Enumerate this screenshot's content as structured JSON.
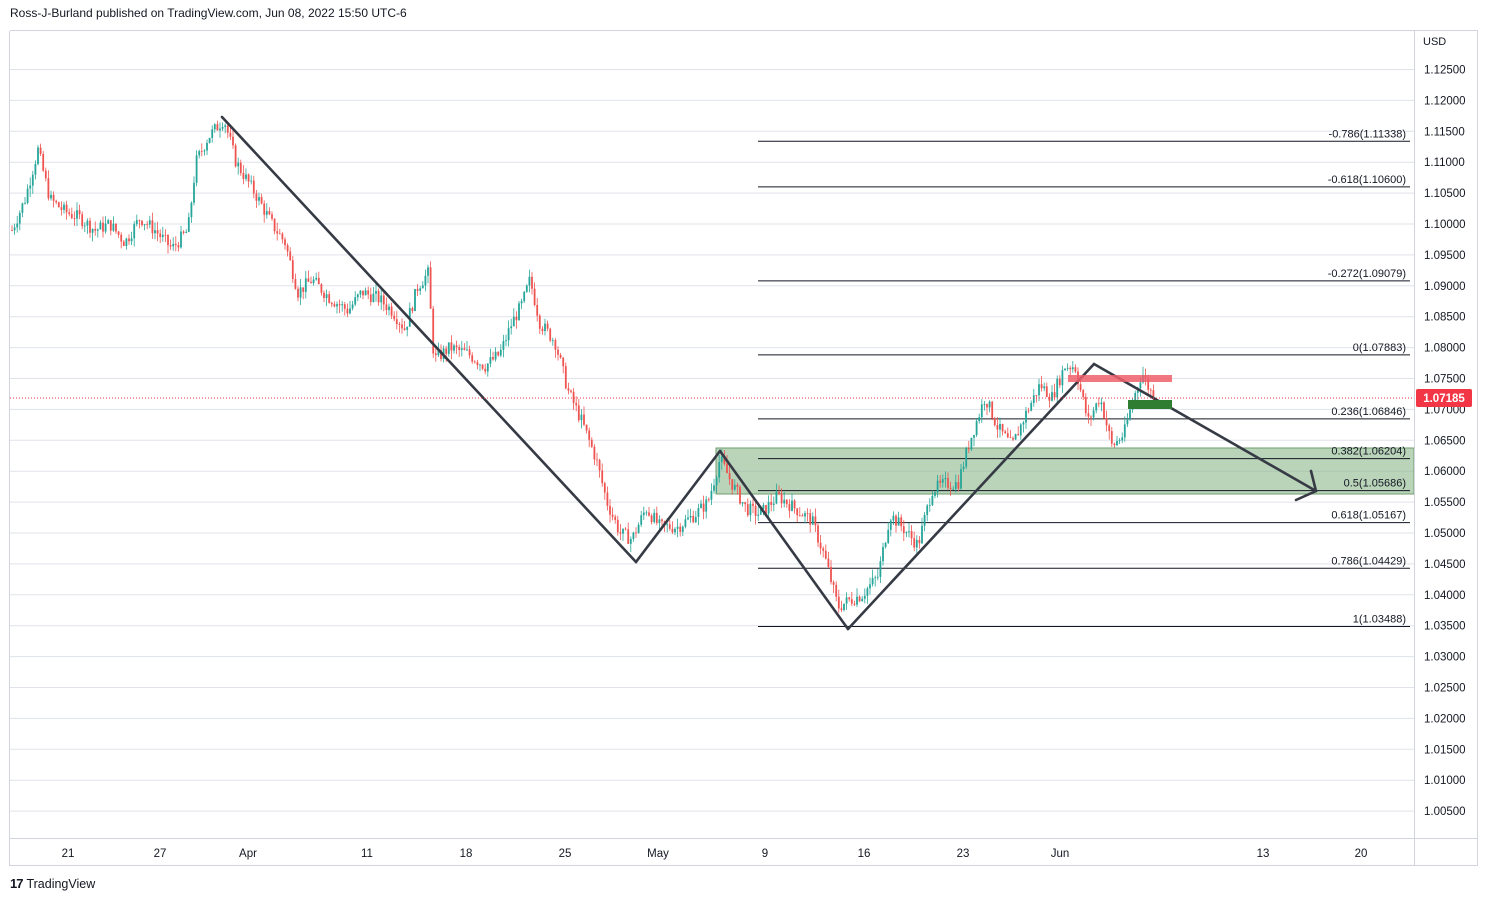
{
  "header": {
    "publisher_line": "Ross-J-Burland published on TradingView.com, Jun 08, 2022 15:50 UTC-6"
  },
  "footer": {
    "logo_text": "TradingView",
    "logo_mark": "17"
  },
  "chart_data": {
    "type": "candlestick",
    "currency": "USD",
    "price_range": [
      1.0,
      1.13
    ],
    "y_ticks": [
      "1.12500",
      "1.12000",
      "1.11500",
      "1.11000",
      "1.10500",
      "1.10000",
      "1.09500",
      "1.09000",
      "1.08500",
      "1.08000",
      "1.07500",
      "1.07000",
      "1.06500",
      "1.06000",
      "1.05500",
      "1.05000",
      "1.04500",
      "1.04000",
      "1.03500",
      "1.03000",
      "1.02500",
      "1.02000",
      "1.01500",
      "1.01000",
      "1.00500"
    ],
    "x_ticks": [
      "21",
      "27",
      "Apr",
      "11",
      "18",
      "25",
      "May",
      "9",
      "16",
      "23",
      "Jun",
      "13",
      "20"
    ],
    "current_price": {
      "label": "1.07185",
      "value": 1.07185,
      "color": "#f23645"
    },
    "fib_levels": [
      {
        "label": "-0.786(1.11338)",
        "value": 1.11338
      },
      {
        "label": "-0.618(1.10600)",
        "value": 1.106
      },
      {
        "label": "-0.272(1.09079)",
        "value": 1.09079
      },
      {
        "label": "0(1.07883)",
        "value": 1.07883
      },
      {
        "label": "0.236(1.06846)",
        "value": 1.06846
      },
      {
        "label": "0.382(1.06204)",
        "value": 1.06204
      },
      {
        "label": "0.5(1.05686)",
        "value": 1.05686
      },
      {
        "label": "0.618(1.05167)",
        "value": 1.05167
      },
      {
        "label": "0.786(1.04429)",
        "value": 1.04429
      },
      {
        "label": "1(1.03488)",
        "value": 1.03488
      }
    ],
    "colors": {
      "up": "#26a69a",
      "down": "#ef5350",
      "zone": "#81b081",
      "resistance": "#ef5f6b",
      "support": "#2e7d32",
      "lines": "#363a45"
    }
  }
}
